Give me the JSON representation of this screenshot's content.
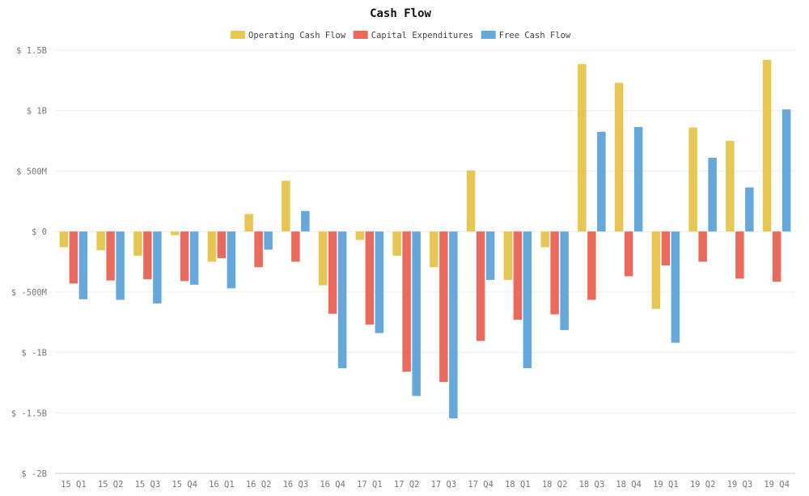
{
  "chart_data": {
    "type": "bar",
    "title": "Cash Flow",
    "xlabel": "",
    "ylabel": "",
    "categories": [
      "15 Q1",
      "15 Q2",
      "15 Q3",
      "15 Q4",
      "16 Q1",
      "16 Q2",
      "16 Q3",
      "16 Q4",
      "17 Q1",
      "17 Q2",
      "17 Q3",
      "17 Q4",
      "18 Q1",
      "18 Q2",
      "18 Q3",
      "18 Q4",
      "19 Q1",
      "19 Q2",
      "19 Q3",
      "19 Q4"
    ],
    "series": [
      {
        "name": "Operating Cash Flow",
        "color": "#e8c654",
        "values": [
          -130,
          -155,
          -200,
          -30,
          -250,
          145,
          420,
          -445,
          -70,
          -200,
          -295,
          505,
          -400,
          -130,
          1385,
          1230,
          -640,
          860,
          750,
          1420
        ]
      },
      {
        "name": "Capital Expenditures",
        "color": "#ea6b5d",
        "values": [
          -430,
          -405,
          -395,
          -410,
          -220,
          -295,
          -250,
          -680,
          -770,
          -1160,
          -1245,
          -905,
          -730,
          -685,
          -565,
          -370,
          -280,
          -250,
          -390,
          -415
        ]
      },
      {
        "name": "Free Cash Flow",
        "color": "#66a8dc",
        "values": [
          -560,
          -565,
          -595,
          -440,
          -470,
          -150,
          170,
          -1130,
          -840,
          -1360,
          -1545,
          -400,
          -1130,
          -815,
          825,
          865,
          -920,
          610,
          365,
          1010
        ]
      }
    ],
    "ylim": [
      -2000,
      1500
    ],
    "y_ticks": [
      {
        "value": 1500,
        "label": "$ 1.5B"
      },
      {
        "value": 1000,
        "label": "$ 1B"
      },
      {
        "value": 500,
        "label": "$ 500M"
      },
      {
        "value": 0,
        "label": "$ 0"
      },
      {
        "value": -500,
        "label": "$ -500M"
      },
      {
        "value": -1000,
        "label": "$ -1B"
      },
      {
        "value": -1500,
        "label": "$ -1.5B"
      },
      {
        "value": -2000,
        "label": "$ -2B"
      }
    ],
    "grid": true,
    "legend_position": "top-center"
  }
}
